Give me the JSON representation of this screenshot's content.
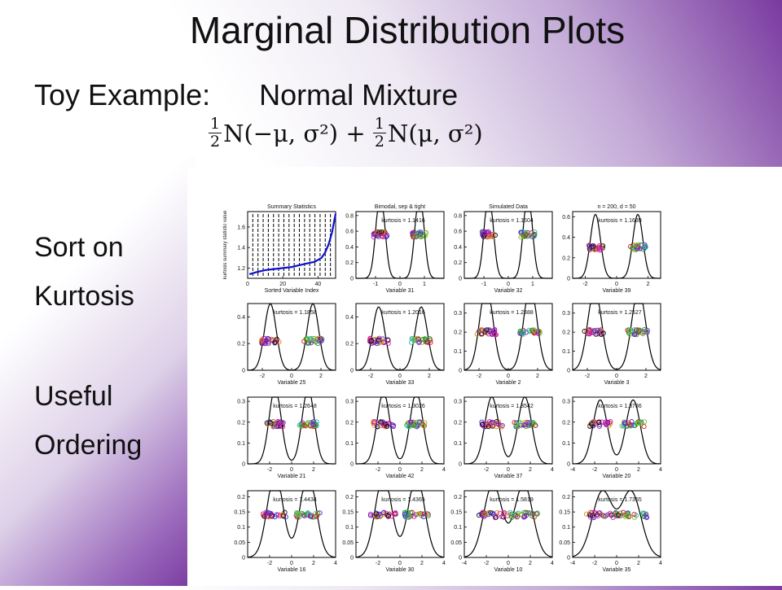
{
  "slide": {
    "title": "Marginal Distribution Plots",
    "subtitle_left": "Toy Example:",
    "subtitle_right": "Normal Mixture",
    "formula": {
      "frac": "1",
      "den": "2",
      "term1": "N(−μ, σ²) + ",
      "term2": "N(μ, σ²)"
    },
    "side_lines": [
      "Sort on",
      "Kurtosis",
      "Useful",
      "Ordering"
    ]
  },
  "chart_data": [
    {
      "type": "line",
      "title": "Summary Statistics",
      "xlabel": "Sorted Variable Index",
      "ylabel": "kurtosis summary statistic value",
      "xlim": [
        0,
        50
      ],
      "ylim": [
        1.1,
        1.75
      ],
      "xticks": [
        "0",
        "20",
        "40"
      ],
      "yticks": [
        "1.2",
        "1.4",
        "1.6"
      ],
      "x": [
        1,
        5,
        10,
        15,
        20,
        25,
        30,
        35,
        38,
        40,
        42,
        44,
        46,
        48,
        50
      ],
      "y": [
        1.14,
        1.16,
        1.18,
        1.19,
        1.2,
        1.21,
        1.23,
        1.25,
        1.26,
        1.28,
        1.3,
        1.35,
        1.43,
        1.55,
        1.73
      ],
      "vertical_lines": 16,
      "color": "#1010d0"
    },
    {
      "type": "density",
      "title": "Bimodal, sep & tight",
      "xlabel": "Variable 31",
      "annotation": "kurtosis = 1.1416",
      "xlim": [
        -1.8,
        1.8
      ],
      "ylim": [
        0,
        0.85
      ],
      "xticks": [
        "-1",
        "0",
        "1"
      ],
      "yticks": [
        "0",
        "0.2",
        "0.4",
        "0.6",
        "0.8"
      ],
      "mu": 0.8,
      "sigma": 0.18,
      "point_y": 0.56
    },
    {
      "type": "density",
      "title": "Simulated Data",
      "xlabel": "Variable 32",
      "annotation": "kurtosis = 1.1504",
      "xlim": [
        -1.8,
        1.8
      ],
      "ylim": [
        0,
        0.85
      ],
      "xticks": [
        "-1",
        "0",
        "1"
      ],
      "yticks": [
        "0",
        "0.2",
        "0.4",
        "0.6",
        "0.8"
      ],
      "mu": 0.8,
      "sigma": 0.18,
      "point_y": 0.56
    },
    {
      "type": "density",
      "title": "n = 200,   d = 50",
      "xlabel": "Variable 39",
      "annotation": "kurtosis = 1.1639",
      "xlim": [
        -2.8,
        2.8
      ],
      "ylim": [
        0,
        0.65
      ],
      "xticks": [
        "-2",
        "0",
        "2"
      ],
      "yticks": [
        "0",
        "0.2",
        "0.4",
        "0.6"
      ],
      "mu": 1.35,
      "sigma": 0.32,
      "point_y": 0.3
    },
    {
      "type": "density",
      "title": "",
      "xlabel": "Variable 25",
      "annotation": "kurtosis = 1.1858",
      "xlim": [
        -3,
        3
      ],
      "ylim": [
        0,
        0.5
      ],
      "xticks": [
        "-2",
        "0",
        "2"
      ],
      "yticks": [
        "0",
        "0.2",
        "0.4"
      ],
      "mu": 1.45,
      "sigma": 0.4,
      "point_y": 0.22
    },
    {
      "type": "density",
      "title": "",
      "xlabel": "Variable 33",
      "annotation": "kurtosis = 1.2016",
      "xlim": [
        -3,
        3
      ],
      "ylim": [
        0,
        0.5
      ],
      "xticks": [
        "-2",
        "0",
        "2"
      ],
      "yticks": [
        "0",
        "0.2",
        "0.4"
      ],
      "mu": 1.45,
      "sigma": 0.42,
      "point_y": 0.22
    },
    {
      "type": "density",
      "title": "",
      "xlabel": "Variable 2",
      "annotation": "kurtosis = 1.2388",
      "xlim": [
        -3,
        3
      ],
      "ylim": [
        0,
        0.35
      ],
      "xticks": [
        "-2",
        "0",
        "2"
      ],
      "yticks": [
        "0",
        "0.1",
        "0.2",
        "0.3"
      ],
      "mu": 1.5,
      "sigma": 0.45,
      "point_y": 0.2
    },
    {
      "type": "density",
      "title": "",
      "xlabel": "Variable 3",
      "annotation": "kurtosis = 1.2527",
      "xlim": [
        -3,
        3
      ],
      "ylim": [
        0,
        0.35
      ],
      "xticks": [
        "-2",
        "0",
        "2"
      ],
      "yticks": [
        "0",
        "0.1",
        "0.2",
        "0.3"
      ],
      "mu": 1.5,
      "sigma": 0.47,
      "point_y": 0.2
    },
    {
      "type": "density",
      "title": "",
      "xlabel": "Variable 21",
      "annotation": "kurtosis = 1.2648",
      "xlim": [
        -4,
        4
      ],
      "ylim": [
        0,
        0.32
      ],
      "xticks": [
        "-2",
        "0",
        "2"
      ],
      "yticks": [
        "0",
        "0.1",
        "0.2",
        "0.3"
      ],
      "mu": 1.5,
      "sigma": 0.55,
      "point_y": 0.19
    },
    {
      "type": "density",
      "title": "",
      "xlabel": "Variable 42",
      "annotation": "kurtosis = 1.3026",
      "xlim": [
        -4,
        4
      ],
      "ylim": [
        0,
        0.32
      ],
      "xticks": [
        "-2",
        "0",
        "2",
        "4"
      ],
      "yticks": [
        "0",
        "0.1",
        "0.2",
        "0.3"
      ],
      "mu": 1.5,
      "sigma": 0.58,
      "point_y": 0.19
    },
    {
      "type": "density",
      "title": "",
      "xlabel": "Variable 37",
      "annotation": "kurtosis = 1.3542",
      "xlim": [
        -4,
        4
      ],
      "ylim": [
        0,
        0.32
      ],
      "xticks": [
        "-2",
        "0",
        "2",
        "4"
      ],
      "yticks": [
        "0",
        "0.1",
        "0.2",
        "0.3"
      ],
      "mu": 1.5,
      "sigma": 0.62,
      "point_y": 0.19
    },
    {
      "type": "density",
      "title": "",
      "xlabel": "Variable 20",
      "annotation": "kurtosis = 1.3786",
      "xlim": [
        -4,
        4
      ],
      "ylim": [
        0,
        0.32
      ],
      "xticks": [
        "-4",
        "-2",
        "0",
        "2",
        "4"
      ],
      "yticks": [
        "0",
        "0.1",
        "0.2",
        "0.3"
      ],
      "mu": 1.5,
      "sigma": 0.65,
      "point_y": 0.19
    },
    {
      "type": "density",
      "title": "",
      "xlabel": "Variable 16",
      "annotation": "kurtosis = 1.4434",
      "xlim": [
        -4,
        4
      ],
      "ylim": [
        0,
        0.22
      ],
      "xticks": [
        "-2",
        "0",
        "2",
        "4"
      ],
      "yticks": [
        "0",
        "0.05",
        "0.1",
        "0.15",
        "0.2"
      ],
      "mu": 1.5,
      "sigma": 0.72,
      "point_y": 0.14
    },
    {
      "type": "density",
      "title": "",
      "xlabel": "Variable 30",
      "annotation": "kurtosis = 1.4365",
      "xlim": [
        -4,
        4
      ],
      "ylim": [
        0,
        0.22
      ],
      "xticks": [
        "-2",
        "0",
        "2",
        "4"
      ],
      "yticks": [
        "0",
        "0.05",
        "0.1",
        "0.15",
        "0.2"
      ],
      "mu": 1.5,
      "sigma": 0.74,
      "point_y": 0.14
    },
    {
      "type": "density",
      "title": "",
      "xlabel": "Variable 10",
      "annotation": "kurtosis = 1.5819",
      "xlim": [
        -4,
        4
      ],
      "ylim": [
        0,
        0.22
      ],
      "xticks": [
        "-4",
        "-2",
        "0",
        "2",
        "4"
      ],
      "yticks": [
        "0",
        "0.05",
        "0.1",
        "0.15",
        "0.2"
      ],
      "mu": 1.4,
      "sigma": 0.82,
      "point_y": 0.14
    },
    {
      "type": "density",
      "title": "",
      "xlabel": "Variable 35",
      "annotation": "kurtosis = 1.7355",
      "xlim": [
        -4,
        4
      ],
      "ylim": [
        0,
        0.22
      ],
      "xticks": [
        "-4",
        "-2",
        "0",
        "2",
        "4"
      ],
      "yticks": [
        "0",
        "0.05",
        "0.1",
        "0.15",
        "0.2"
      ],
      "mu": 1.3,
      "sigma": 0.92,
      "point_y": 0.14
    }
  ]
}
